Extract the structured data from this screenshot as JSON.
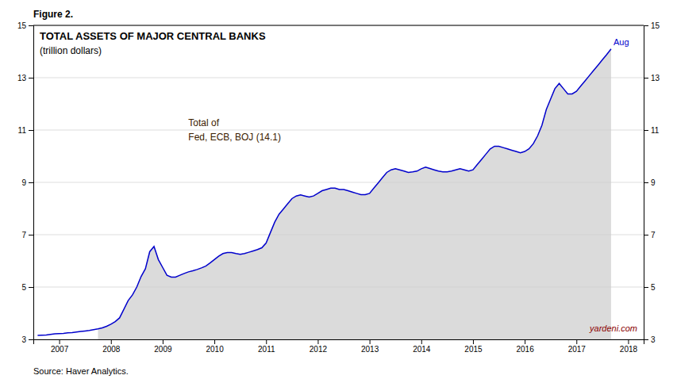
{
  "chart_data": {
    "type": "line",
    "title": "TOTAL ASSETS OF MAJOR CENTRAL BANKS",
    "subtitle": "(trillion dollars)",
    "annotations": [
      "Figure 2.",
      "Total of",
      "Fed, ECB, BOJ (14.1)",
      "Aug",
      "yardeni.com",
      "Source: Haver Analytics."
    ],
    "x": [
      2006.583,
      2006.667,
      2006.75,
      2006.833,
      2006.917,
      2007.0,
      2007.083,
      2007.167,
      2007.25,
      2007.333,
      2007.417,
      2007.5,
      2007.583,
      2007.667,
      2007.75,
      2007.833,
      2007.917,
      2008.0,
      2008.083,
      2008.167,
      2008.25,
      2008.333,
      2008.417,
      2008.5,
      2008.583,
      2008.667,
      2008.75,
      2008.833,
      2008.917,
      2009.0,
      2009.083,
      2009.167,
      2009.25,
      2009.333,
      2009.417,
      2009.5,
      2009.583,
      2009.667,
      2009.75,
      2009.833,
      2009.917,
      2010.0,
      2010.083,
      2010.167,
      2010.25,
      2010.333,
      2010.417,
      2010.5,
      2010.583,
      2010.667,
      2010.75,
      2010.833,
      2010.917,
      2011.0,
      2011.083,
      2011.167,
      2011.25,
      2011.333,
      2011.417,
      2011.5,
      2011.583,
      2011.667,
      2011.75,
      2011.833,
      2011.917,
      2012.0,
      2012.083,
      2012.167,
      2012.25,
      2012.333,
      2012.417,
      2012.5,
      2012.583,
      2012.667,
      2012.75,
      2012.833,
      2012.917,
      2013.0,
      2013.083,
      2013.167,
      2013.25,
      2013.333,
      2013.417,
      2013.5,
      2013.583,
      2013.667,
      2013.75,
      2013.833,
      2013.917,
      2014.0,
      2014.083,
      2014.167,
      2014.25,
      2014.333,
      2014.417,
      2014.5,
      2014.583,
      2014.667,
      2014.75,
      2014.833,
      2014.917,
      2015.0,
      2015.083,
      2015.167,
      2015.25,
      2015.333,
      2015.417,
      2015.5,
      2015.583,
      2015.667,
      2015.75,
      2015.833,
      2015.917,
      2016.0,
      2016.083,
      2016.167,
      2016.25,
      2016.333,
      2016.417,
      2016.5,
      2016.583,
      2016.667,
      2016.75,
      2016.833,
      2016.917,
      2017.0,
      2017.083,
      2017.167,
      2017.25,
      2017.333,
      2017.417,
      2017.5,
      2017.583,
      2017.67
    ],
    "series": [
      {
        "color": "#0000CC",
        "values": [
          3.15,
          3.16,
          3.17,
          3.19,
          3.21,
          3.22,
          3.23,
          3.25,
          3.26,
          3.28,
          3.3,
          3.32,
          3.34,
          3.37,
          3.4,
          3.44,
          3.5,
          3.58,
          3.68,
          3.82,
          4.15,
          4.48,
          4.7,
          5.0,
          5.4,
          5.7,
          6.35,
          6.55,
          6.05,
          5.75,
          5.45,
          5.38,
          5.38,
          5.45,
          5.52,
          5.58,
          5.62,
          5.67,
          5.73,
          5.8,
          5.92,
          6.05,
          6.18,
          6.28,
          6.32,
          6.32,
          6.28,
          6.25,
          6.28,
          6.33,
          6.38,
          6.43,
          6.5,
          6.68,
          7.08,
          7.48,
          7.78,
          7.98,
          8.18,
          8.38,
          8.48,
          8.52,
          8.48,
          8.44,
          8.48,
          8.58,
          8.68,
          8.73,
          8.78,
          8.78,
          8.73,
          8.73,
          8.68,
          8.63,
          8.58,
          8.53,
          8.53,
          8.58,
          8.78,
          8.98,
          9.18,
          9.38,
          9.48,
          9.52,
          9.48,
          9.43,
          9.38,
          9.4,
          9.43,
          9.52,
          9.58,
          9.53,
          9.48,
          9.43,
          9.4,
          9.4,
          9.43,
          9.48,
          9.52,
          9.48,
          9.43,
          9.48,
          9.68,
          9.88,
          10.08,
          10.28,
          10.38,
          10.38,
          10.33,
          10.28,
          10.23,
          10.18,
          10.13,
          10.18,
          10.28,
          10.48,
          10.78,
          11.18,
          11.78,
          12.18,
          12.58,
          12.78,
          12.58,
          12.38,
          12.38,
          12.48,
          12.68,
          12.88,
          13.08,
          13.28,
          13.48,
          13.68,
          13.88,
          14.1
        ]
      }
    ],
    "shaded_x": [
      2007.75,
      2017.67
    ],
    "shade_color": "#CCCCCC",
    "xlim": [
      2006.5,
      2018.3
    ],
    "xticks": [
      2007,
      2008,
      2009,
      2010,
      2011,
      2012,
      2013,
      2014,
      2015,
      2016,
      2017,
      2018
    ],
    "ylim": [
      3,
      15
    ],
    "yticks": [
      3,
      5,
      7,
      9,
      11,
      13,
      15
    ],
    "y2lim": [
      3,
      15
    ],
    "y2ticks": [
      3,
      5,
      7,
      9,
      11,
      13,
      15
    ],
    "grid": true
  }
}
